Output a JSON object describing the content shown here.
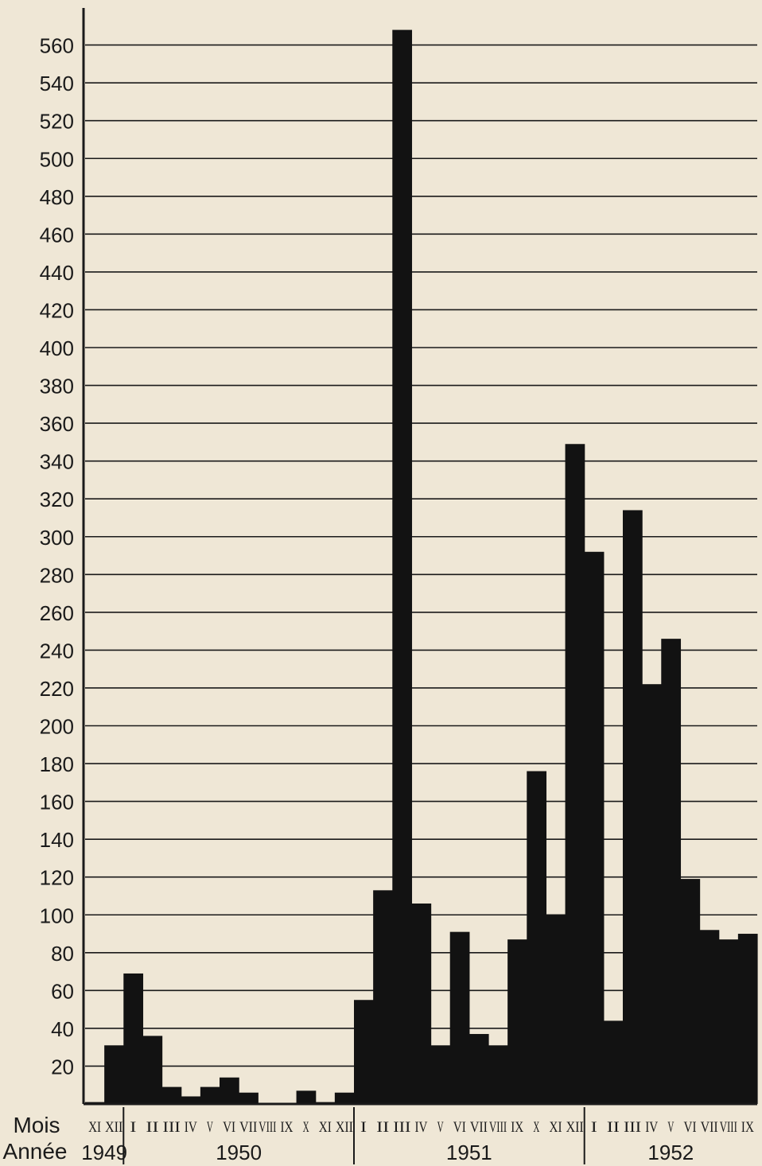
{
  "chart_data": {
    "type": "bar",
    "title": "",
    "xlabel_row1": "Mois",
    "xlabel_row2": "Année",
    "ylabel": "",
    "ylim": [
      0,
      570
    ],
    "yticks": [
      20,
      40,
      60,
      80,
      100,
      120,
      140,
      160,
      180,
      200,
      220,
      240,
      260,
      280,
      300,
      320,
      340,
      360,
      380,
      400,
      420,
      440,
      460,
      480,
      500,
      520,
      540,
      560
    ],
    "grid": true,
    "colors": {
      "bar": "#121212",
      "grid": "#1a1a1a",
      "background": "#efe7d6"
    },
    "categories": [
      "XI",
      "XII",
      "I",
      "II",
      "III",
      "IV",
      "V",
      "VI",
      "VII",
      "VIII",
      "IX",
      "X",
      "XI",
      "XII",
      "I",
      "II",
      "III",
      "IV",
      "V",
      "VI",
      "VII",
      "VIII",
      "IX",
      "X",
      "XI",
      "XII",
      "I",
      "II",
      "III",
      "IV",
      "V",
      "VI",
      "VII",
      "VIII",
      "IX"
    ],
    "values": [
      1,
      31,
      69,
      36,
      9,
      4,
      9,
      14,
      6,
      0,
      0,
      7,
      1,
      6,
      55,
      113,
      568,
      106,
      31,
      91,
      37,
      31,
      87,
      176,
      100,
      349,
      292,
      44,
      314,
      222,
      246,
      119,
      92,
      87,
      90
    ],
    "years": [
      {
        "label": "1949",
        "start": 0,
        "count": 2
      },
      {
        "label": "1950",
        "start": 2,
        "count": 12
      },
      {
        "label": "1951",
        "start": 14,
        "count": 12
      },
      {
        "label": "1952",
        "start": 26,
        "count": 9
      }
    ]
  }
}
